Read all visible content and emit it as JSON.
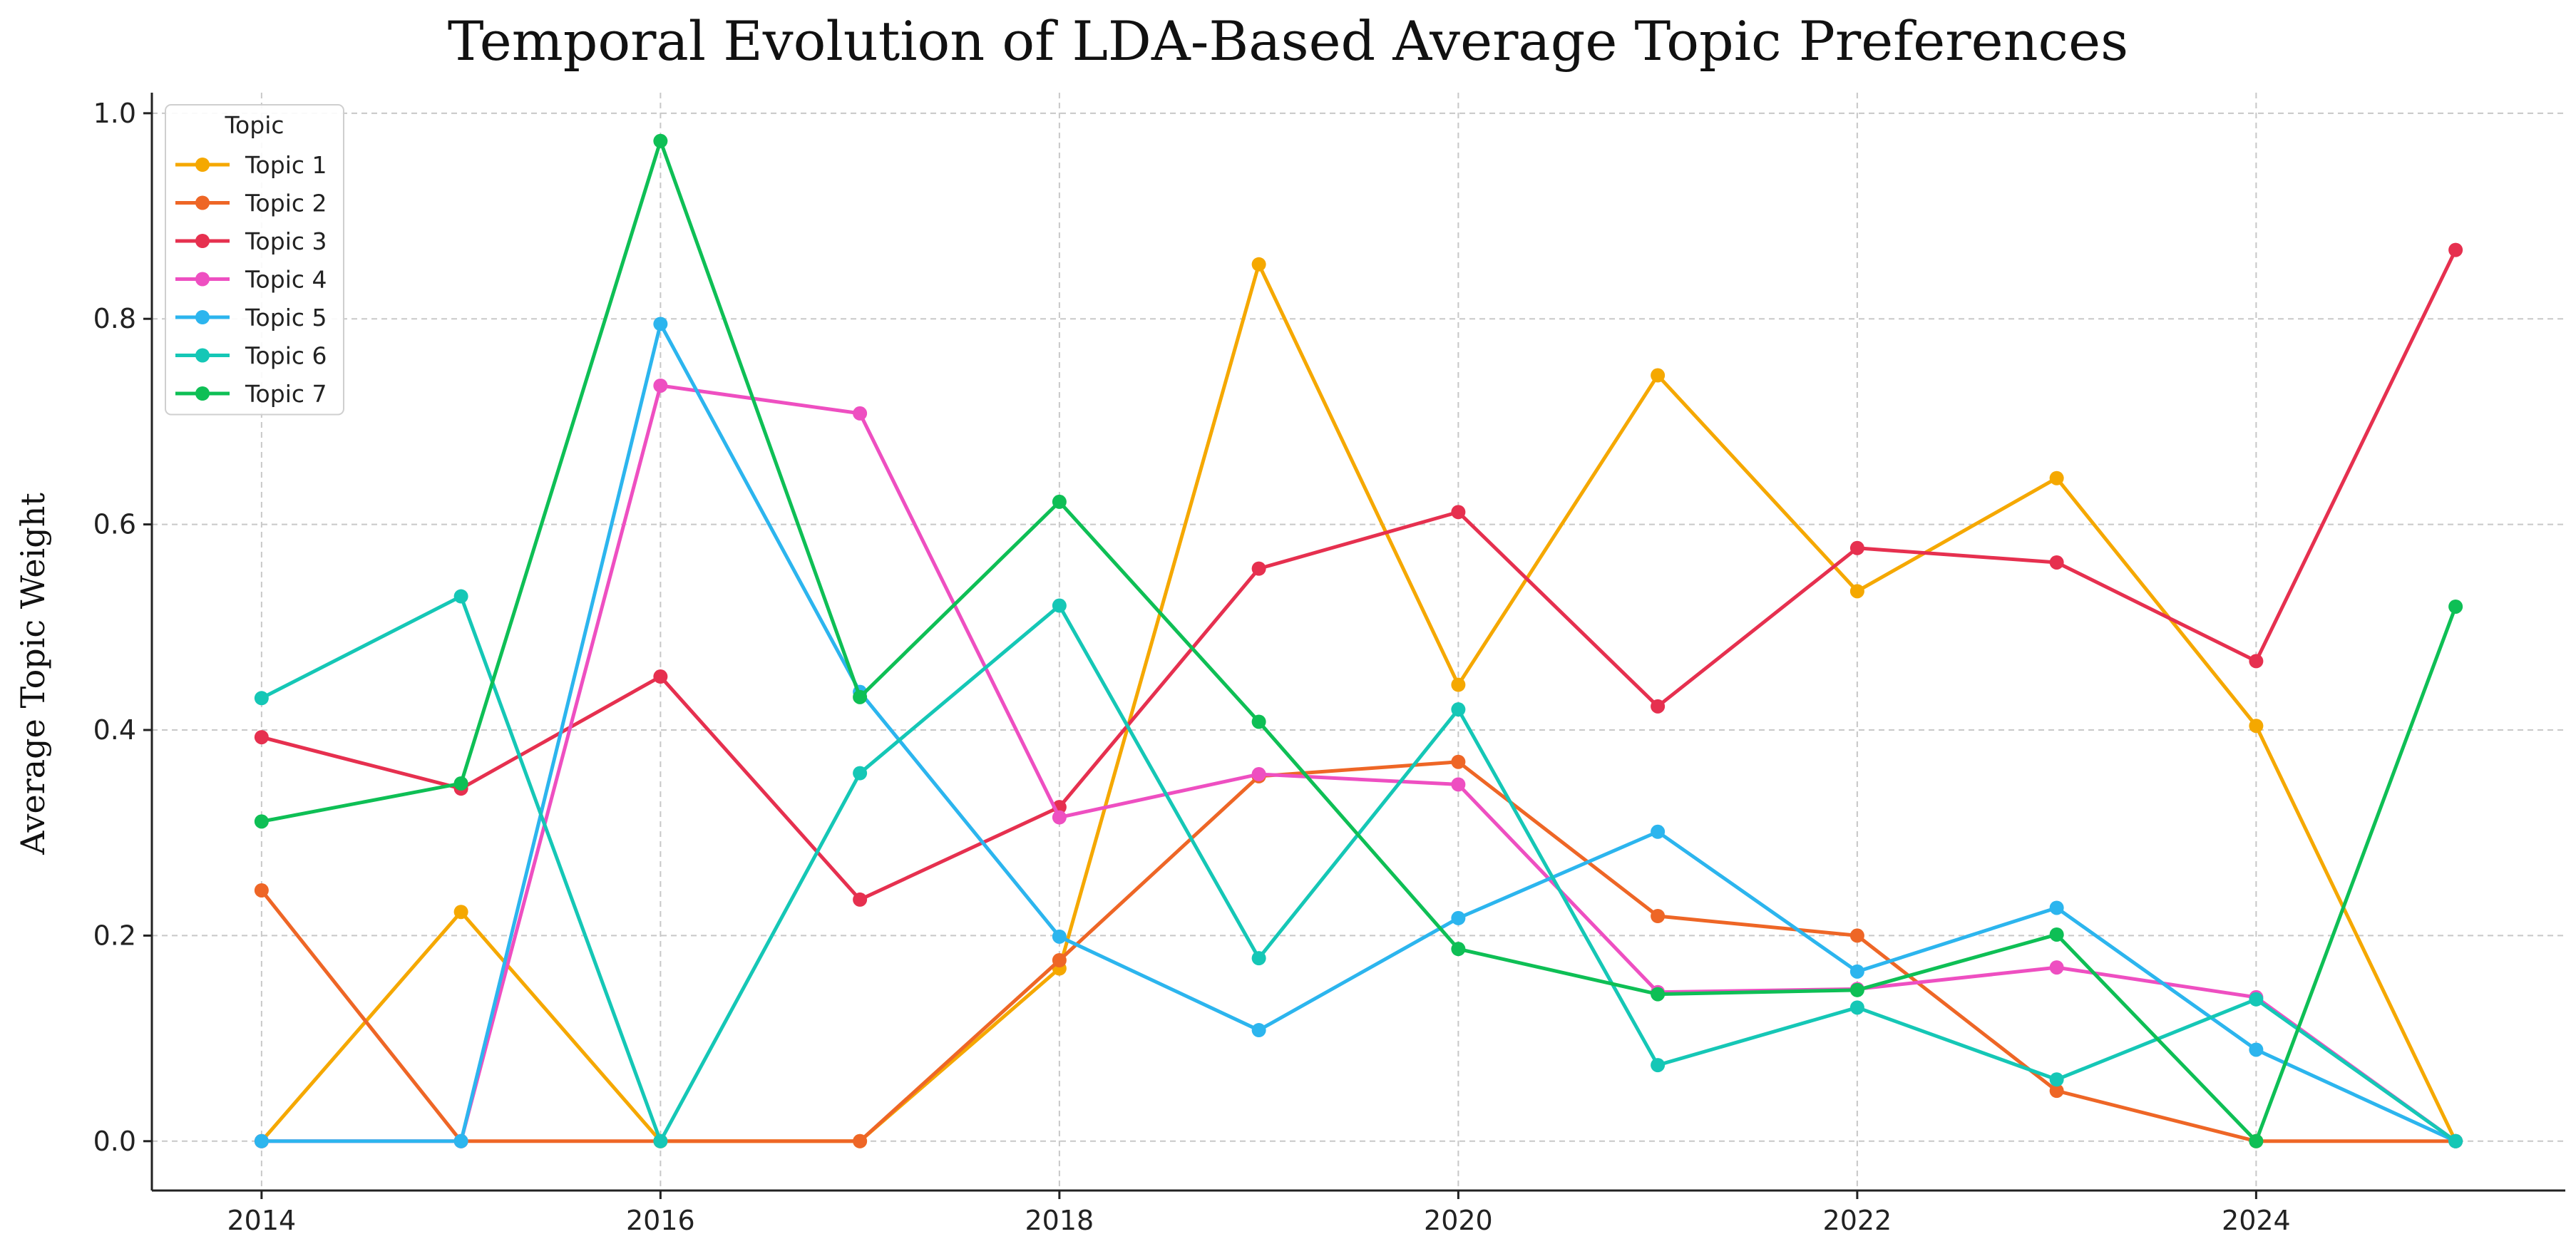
{
  "chart_data": {
    "type": "line",
    "title": "Temporal Evolution of LDA-Based Average Topic Preferences",
    "xlabel": "",
    "ylabel": "Average Topic Weight",
    "x": [
      2014,
      2015,
      2016,
      2017,
      2018,
      2019,
      2020,
      2021,
      2022,
      2023,
      2024,
      2025
    ],
    "xticks": [
      2014,
      2016,
      2018,
      2020,
      2022,
      2024
    ],
    "xtick_labels": [
      "2014",
      "2016",
      "2018",
      "2020",
      "2022",
      "2024"
    ],
    "yticks": [
      0.0,
      0.2,
      0.4,
      0.6,
      0.8,
      1.0
    ],
    "ytick_labels": [
      "0.0",
      "0.2",
      "0.4",
      "0.6",
      "0.8",
      "1.0"
    ],
    "xlim": [
      2013.45,
      2025.55
    ],
    "ylim": [
      -0.048,
      1.02
    ],
    "grid": true,
    "legend": {
      "title": "Topic",
      "placement": "top-left"
    },
    "series": [
      {
        "name": "Topic 1",
        "color": "#F5A800",
        "values": [
          0.0,
          0.223,
          0.0,
          0.0,
          0.168,
          0.853,
          0.444,
          0.745,
          0.535,
          0.645,
          0.404,
          0.0
        ]
      },
      {
        "name": "Topic 2",
        "color": "#EE6626",
        "values": [
          0.244,
          0.0,
          0.0,
          0.0,
          0.176,
          0.355,
          0.369,
          0.219,
          0.2,
          0.049,
          0.0,
          0.0
        ]
      },
      {
        "name": "Topic 3",
        "color": "#E6304F",
        "values": [
          0.393,
          0.343,
          0.452,
          0.235,
          0.325,
          0.557,
          0.612,
          0.423,
          0.577,
          0.563,
          0.467,
          0.867
        ]
      },
      {
        "name": "Topic 4",
        "color": "#EE4FC1",
        "values": [
          0.0,
          0.0,
          0.735,
          0.708,
          0.315,
          0.357,
          0.347,
          0.145,
          0.148,
          0.169,
          0.14,
          0.0
        ]
      },
      {
        "name": "Topic 5",
        "color": "#2CB5EE",
        "values": [
          0.0,
          0.0,
          0.795,
          0.437,
          0.199,
          0.108,
          0.217,
          0.301,
          0.165,
          0.227,
          0.089,
          0.0
        ]
      },
      {
        "name": "Topic 6",
        "color": "#15C7B6",
        "values": [
          0.431,
          0.53,
          0.0,
          0.358,
          0.521,
          0.178,
          0.42,
          0.074,
          0.13,
          0.06,
          0.138,
          0.0
        ]
      },
      {
        "name": "Topic 7",
        "color": "#0EBF55",
        "values": [
          0.311,
          0.348,
          0.973,
          0.432,
          0.622,
          0.408,
          0.187,
          0.143,
          0.147,
          0.201,
          0.0,
          0.52
        ]
      }
    ]
  }
}
